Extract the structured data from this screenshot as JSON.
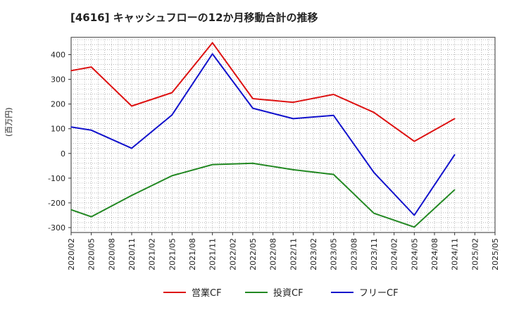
{
  "chart_data": {
    "type": "line",
    "title": "[4616]  キャッシュフローの12か月移動合計の推移",
    "ylabel": "(百万円)",
    "xlabel": "",
    "ylim": [
      -320,
      470
    ],
    "yticks": [
      400,
      300,
      200,
      100,
      0,
      -100,
      -200,
      -300
    ],
    "categories": [
      "2020/02",
      "2020/05",
      "2020/08",
      "2020/11",
      "2021/02",
      "2021/05",
      "2021/08",
      "2021/11",
      "2022/02",
      "2022/05",
      "2022/08",
      "2022/11",
      "2023/02",
      "2023/05",
      "2023/08",
      "2023/11",
      "2024/02",
      "2024/05",
      "2024/08",
      "2024/11",
      "2025/02",
      "2025/05"
    ],
    "series": [
      {
        "name": "営業CF",
        "color": "#dd1111",
        "values": [
          335,
          350,
          null,
          192,
          null,
          246,
          null,
          448,
          null,
          222,
          null,
          207,
          null,
          239,
          null,
          166,
          null,
          49,
          null,
          141,
          null,
          null
        ]
      },
      {
        "name": "投資CF",
        "color": "#228822",
        "values": [
          -228,
          -256,
          null,
          -170,
          null,
          -90,
          null,
          -45,
          null,
          -40,
          null,
          -66,
          null,
          -85,
          null,
          -242,
          null,
          -298,
          null,
          -147,
          null,
          null
        ]
      },
      {
        "name": "フリーCF",
        "color": "#1111cc",
        "values": [
          107,
          94,
          null,
          21,
          null,
          156,
          null,
          403,
          null,
          183,
          null,
          141,
          null,
          154,
          null,
          -77,
          null,
          -250,
          null,
          -5,
          null,
          null
        ]
      }
    ],
    "grid": true,
    "legend_position": "bottom"
  }
}
